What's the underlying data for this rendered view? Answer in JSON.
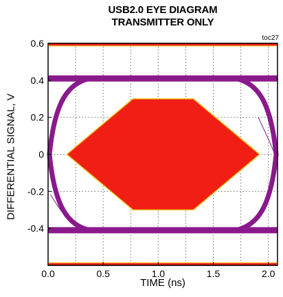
{
  "chart_data": {
    "type": "line",
    "title_line1": "USB2.0 EYE DIAGRAM",
    "title_line2": "TRANSMITTER ONLY",
    "annotation": "toc27",
    "xlabel": "TIME (ns)",
    "ylabel": "DIFFERENTIAL  SIGNAL, V",
    "xlim": [
      0.0,
      2.083
    ],
    "ylim": [
      -0.6,
      0.6
    ],
    "xticks": [
      {
        "value": 0.0,
        "label": "0.0"
      },
      {
        "value": 0.5,
        "label": "0.5"
      },
      {
        "value": 1.0,
        "label": "1.0"
      },
      {
        "value": 1.5,
        "label": "1.5"
      },
      {
        "value": 2.0,
        "label": "2.0"
      }
    ],
    "yticks": [
      {
        "value": 0.6,
        "label": "0.6"
      },
      {
        "value": 0.4,
        "label": "0.4"
      },
      {
        "value": 0.2,
        "label": "0.2"
      },
      {
        "value": 0.0,
        "label": "0"
      },
      {
        "value": -0.2,
        "label": "-0.2"
      },
      {
        "value": -0.4,
        "label": "-0.4"
      }
    ],
    "grid": true,
    "colors": {
      "trace": "#8a1a8c",
      "mask": "#f01e14",
      "mask_edge": "#f0c020",
      "limit_band": "#f01e14",
      "grid": "#6a6a6a"
    },
    "high_level": 0.41,
    "low_level": -0.41,
    "eye_crossings_x": [
      0.0,
      2.083
    ],
    "mask_polygon": [
      [
        0.17,
        0.0
      ],
      [
        0.77,
        0.3
      ],
      [
        1.32,
        0.3
      ],
      [
        1.92,
        0.0
      ],
      [
        1.32,
        -0.3
      ],
      [
        0.77,
        -0.3
      ]
    ],
    "limit_bands": [
      0.595,
      -0.595
    ]
  }
}
